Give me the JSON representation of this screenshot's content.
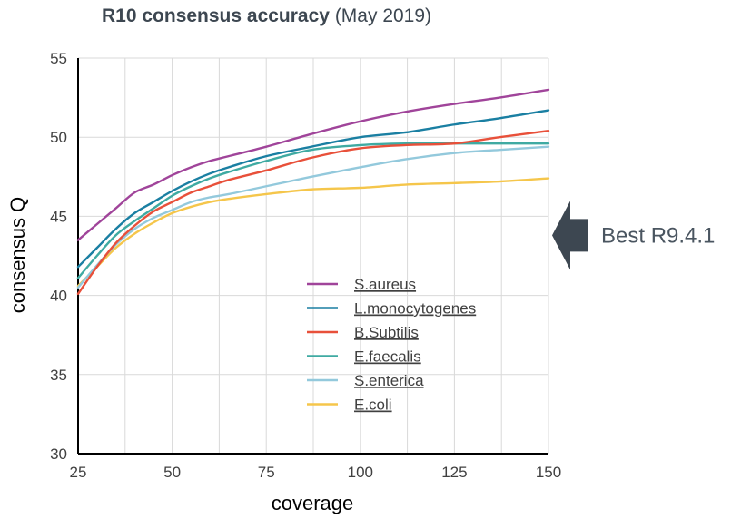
{
  "chart_data": {
    "type": "line",
    "title_bold": "R10 consensus accuracy",
    "title_rest": " (May 2019)",
    "xlabel": "coverage",
    "ylabel": "consensus Q",
    "xlim": [
      25,
      150
    ],
    "ylim": [
      30,
      55
    ],
    "xticks": [
      25,
      50,
      75,
      100,
      125,
      150
    ],
    "yticks": [
      30,
      35,
      40,
      45,
      50,
      55
    ],
    "grid": "vertical",
    "legend_position": "center",
    "series": [
      {
        "name": "S.aureus",
        "color": "#a0449a",
        "points": [
          [
            25,
            43.5
          ],
          [
            30,
            44.5
          ],
          [
            35,
            45.5
          ],
          [
            40,
            46.5
          ],
          [
            45,
            47.0
          ],
          [
            50,
            47.6
          ],
          [
            55,
            48.1
          ],
          [
            60,
            48.5
          ],
          [
            65,
            48.8
          ],
          [
            75,
            49.4
          ],
          [
            87,
            50.2
          ],
          [
            100,
            51.0
          ],
          [
            112,
            51.6
          ],
          [
            125,
            52.1
          ],
          [
            137,
            52.5
          ],
          [
            150,
            53.0
          ]
        ]
      },
      {
        "name": "L.monocytogenes",
        "color": "#1a7fa2",
        "points": [
          [
            25,
            41.8
          ],
          [
            30,
            43.0
          ],
          [
            35,
            44.2
          ],
          [
            40,
            45.2
          ],
          [
            45,
            45.9
          ],
          [
            50,
            46.6
          ],
          [
            55,
            47.2
          ],
          [
            60,
            47.7
          ],
          [
            65,
            48.1
          ],
          [
            75,
            48.8
          ],
          [
            87,
            49.4
          ],
          [
            100,
            50.0
          ],
          [
            112,
            50.3
          ],
          [
            125,
            50.8
          ],
          [
            137,
            51.2
          ],
          [
            150,
            51.7
          ]
        ]
      },
      {
        "name": "B.Subtilis",
        "color": "#e8503a",
        "points": [
          [
            25,
            40.1
          ],
          [
            30,
            41.8
          ],
          [
            35,
            43.3
          ],
          [
            40,
            44.4
          ],
          [
            45,
            45.3
          ],
          [
            50,
            45.9
          ],
          [
            55,
            46.5
          ],
          [
            60,
            46.9
          ],
          [
            65,
            47.3
          ],
          [
            75,
            47.9
          ],
          [
            87,
            48.7
          ],
          [
            100,
            49.3
          ],
          [
            112,
            49.5
          ],
          [
            125,
            49.6
          ],
          [
            137,
            50.0
          ],
          [
            150,
            50.4
          ]
        ]
      },
      {
        "name": "E.faecalis",
        "color": "#3faaa2",
        "points": [
          [
            25,
            41.1
          ],
          [
            30,
            42.5
          ],
          [
            35,
            43.8
          ],
          [
            40,
            44.7
          ],
          [
            45,
            45.5
          ],
          [
            50,
            46.3
          ],
          [
            55,
            46.9
          ],
          [
            60,
            47.4
          ],
          [
            65,
            47.8
          ],
          [
            75,
            48.5
          ],
          [
            87,
            49.2
          ],
          [
            100,
            49.5
          ],
          [
            112,
            49.6
          ],
          [
            125,
            49.6
          ],
          [
            137,
            49.6
          ],
          [
            150,
            49.6
          ]
        ]
      },
      {
        "name": "S.enterica",
        "color": "#93c9dc",
        "points": [
          [
            25,
            40.5
          ],
          [
            30,
            41.9
          ],
          [
            35,
            43.2
          ],
          [
            40,
            44.2
          ],
          [
            45,
            44.9
          ],
          [
            50,
            45.4
          ],
          [
            55,
            45.9
          ],
          [
            60,
            46.2
          ],
          [
            65,
            46.4
          ],
          [
            75,
            46.9
          ],
          [
            87,
            47.5
          ],
          [
            100,
            48.1
          ],
          [
            112,
            48.6
          ],
          [
            125,
            49.0
          ],
          [
            137,
            49.2
          ],
          [
            150,
            49.4
          ]
        ]
      },
      {
        "name": "E.coli",
        "color": "#f5c64b",
        "points": [
          [
            25,
            40.6
          ],
          [
            30,
            41.8
          ],
          [
            35,
            43.0
          ],
          [
            40,
            43.9
          ],
          [
            45,
            44.6
          ],
          [
            50,
            45.2
          ],
          [
            55,
            45.6
          ],
          [
            60,
            45.9
          ],
          [
            65,
            46.1
          ],
          [
            75,
            46.4
          ],
          [
            87,
            46.7
          ],
          [
            100,
            46.8
          ],
          [
            112,
            47.0
          ],
          [
            125,
            47.1
          ],
          [
            137,
            47.2
          ],
          [
            150,
            47.4
          ]
        ]
      }
    ],
    "annotation": {
      "text": "Best R9.4.1",
      "y": 43.8,
      "arrow_color": "#3d4751"
    }
  }
}
